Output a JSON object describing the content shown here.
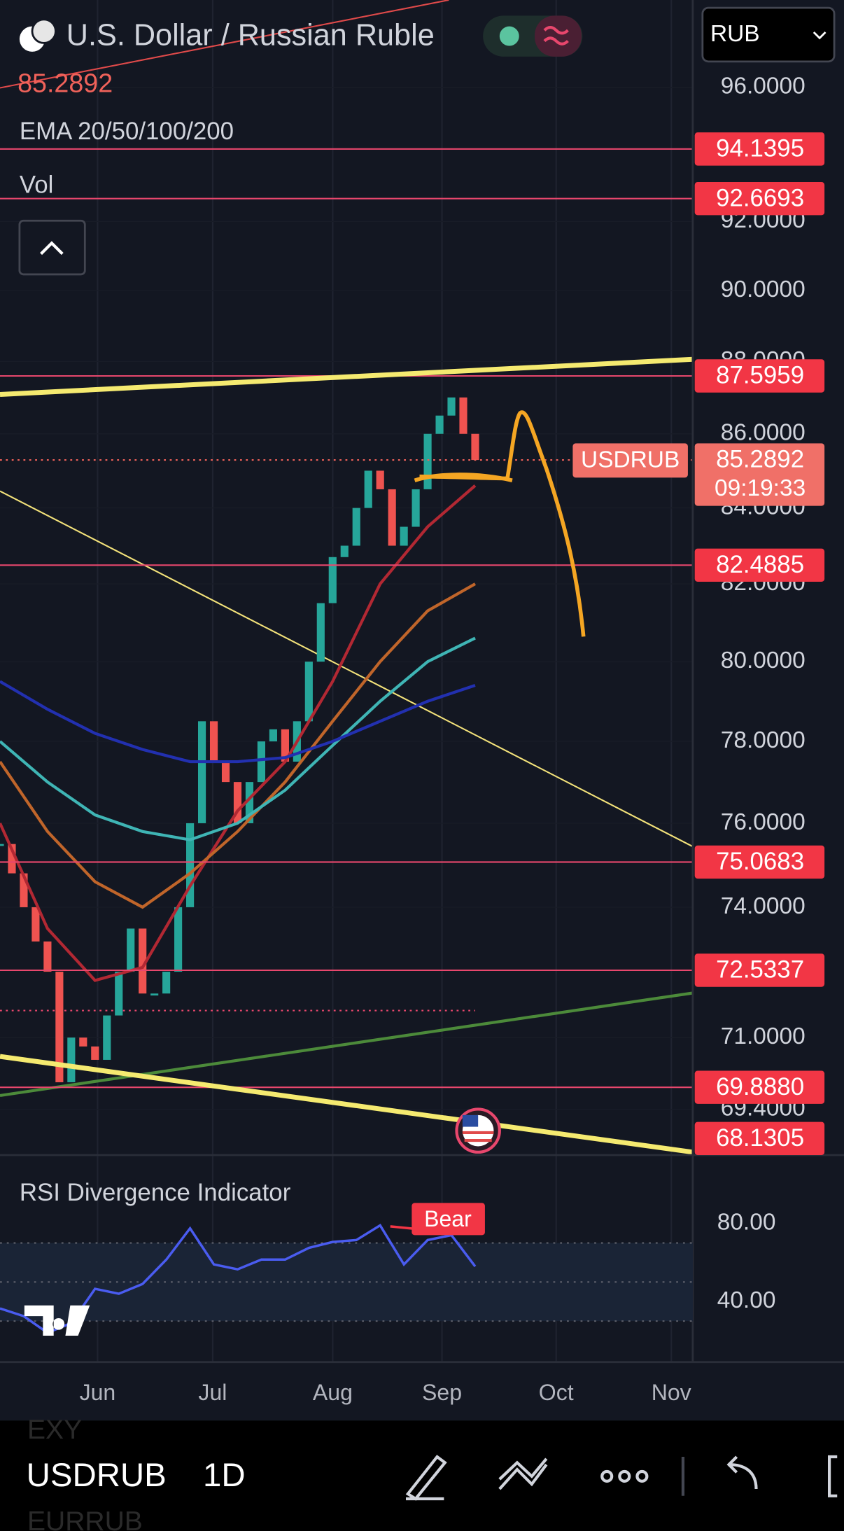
{
  "header": {
    "title": "U.S. Dollar / Russian Ruble",
    "ema": "EMA 20/50/100/200",
    "vol": "Vol"
  },
  "currency": "RUB",
  "chart_data": [
    {
      "type": "candlestick",
      "log_scale": true,
      "ylim": [
        68.4,
        98.7
      ],
      "yticks": [
        {
          "value": 96,
          "label": "96.0000"
        },
        {
          "value": 92,
          "label": "92.0000"
        },
        {
          "value": 90,
          "label": "90.0000"
        },
        {
          "value": 88,
          "label": "88.0000"
        },
        {
          "value": 86,
          "label": "86.0000"
        },
        {
          "value": 84,
          "label": "84.0000"
        },
        {
          "value": 82,
          "label": "82.0000"
        },
        {
          "value": 80,
          "label": "80.0000"
        },
        {
          "value": 78,
          "label": "78.0000"
        },
        {
          "value": 76,
          "label": "76.0000"
        },
        {
          "value": 74,
          "label": "74.0000"
        },
        {
          "value": 71,
          "label": "71.0000"
        },
        {
          "value": 69.4,
          "label": "69.4000"
        }
      ],
      "xticks": [
        "Jun",
        "Jul",
        "Aug",
        "Sep",
        "Oct",
        "Nov"
      ],
      "close": [
        75.5,
        74.8,
        74,
        73.2,
        72.5,
        70,
        71,
        70.8,
        70.5,
        71.5,
        72.5,
        73.5,
        72,
        72,
        72.5,
        74,
        76,
        78.5,
        77.5,
        77,
        76,
        77,
        78,
        78.3,
        77.5,
        78.5,
        80,
        81.5,
        82.7,
        83,
        84,
        85,
        84.5,
        83,
        83.5,
        84.5,
        86,
        86.5,
        87,
        86,
        85.2892
      ],
      "up_color": "#26a69a",
      "down_color": "#ef5350",
      "ema_lines": [
        {
          "color": "#b22833",
          "values": [
            76,
            73.5,
            72.3,
            72.6,
            74.5,
            76.3,
            77.5,
            79.5,
            82,
            83.5,
            84.6
          ]
        },
        {
          "color": "#c0652a",
          "values": [
            77.5,
            75.8,
            74.6,
            74,
            74.8,
            75.8,
            77,
            78.5,
            80,
            81.3,
            82
          ]
        },
        {
          "color": "#3fb5b5",
          "values": [
            78,
            77,
            76.2,
            75.8,
            75.6,
            76,
            76.8,
            77.9,
            79,
            80,
            80.6
          ]
        },
        {
          "color": "#2230b0",
          "values": [
            79.5,
            78.8,
            78.2,
            77.8,
            77.5,
            77.5,
            77.6,
            78,
            78.5,
            79,
            79.4
          ]
        }
      ],
      "levels": {
        "color": "#e8476d",
        "values": [
          94.1395,
          92.6693,
          87.5959,
          82.4885,
          75.0683,
          72.5337,
          69.888,
          68.1305
        ],
        "value_labels": [
          "94.1395",
          "92.6693",
          "87.5959",
          "82.4885",
          "75.0683",
          "72.5337",
          "69.8880",
          "68.1305"
        ]
      },
      "last": {
        "symbol": "USDRUB",
        "value": 85.2892,
        "countdown": "09:19:33"
      }
    },
    {
      "type": "line",
      "title": "RSI Divergence Indicator",
      "ylim": [
        9,
        115
      ],
      "yticks": [
        {
          "value": 80,
          "label": "80.00"
        },
        {
          "value": 40,
          "label": "40.00"
        }
      ],
      "values": [
        36.5,
        32.5,
        24,
        29,
        46.5,
        44,
        49,
        61.5,
        77.5,
        59,
        56.5,
        61.5,
        61.5,
        67.5,
        70.5,
        71.5,
        79,
        59,
        71.5,
        74,
        58
      ],
      "color": "#4a5cf0",
      "annotation": "Bear"
    }
  ],
  "toolbar": {
    "above": "EXY",
    "symbol": "USDRUB",
    "interval": "1D",
    "below": "EURRUB"
  }
}
